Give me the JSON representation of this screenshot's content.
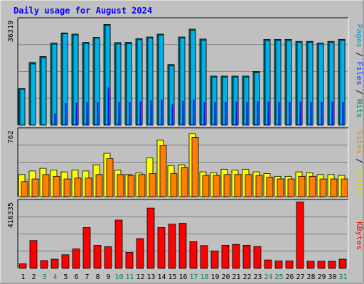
{
  "chart_data": [
    {
      "type": "bar",
      "panel": "top",
      "title": "Daily usage for August 2024",
      "ylabel_segments": [
        {
          "text": "Pages",
          "color": "#00a0c8"
        },
        {
          "text": " / ",
          "color": "#000000"
        },
        {
          "text": "Files",
          "color": "#0040ff"
        },
        {
          "text": " / ",
          "color": "#000000"
        },
        {
          "text": "Hits",
          "color": "#008060"
        }
      ],
      "ymax_label": "36319",
      "ylim": [
        0,
        36319
      ],
      "categories": [
        "1",
        "2",
        "3",
        "4",
        "5",
        "6",
        "7",
        "8",
        "9",
        "10",
        "11",
        "12",
        "13",
        "14",
        "15",
        "16",
        "17",
        "18",
        "19",
        "20",
        "21",
        "22",
        "23",
        "24",
        "25",
        "26",
        "27",
        "28",
        "29",
        "30",
        "31"
      ],
      "series": [
        {
          "name": "Hits",
          "color": "#008080",
          "values": [
            12500,
            21500,
            23500,
            28100,
            31600,
            31200,
            28400,
            30100,
            34500,
            28300,
            28400,
            29600,
            30200,
            31200,
            20800,
            30200,
            32900,
            29500,
            16800,
            16800,
            16800,
            16800,
            18400,
            29400,
            29400,
            29400,
            28700,
            28700,
            28100,
            28700,
            29400
          ]
        },
        {
          "name": "Files",
          "color": "#00b0e8",
          "values": [
            12200,
            21000,
            23000,
            27800,
            31300,
            30900,
            28000,
            29800,
            34200,
            27800,
            27900,
            29300,
            29900,
            30900,
            20300,
            29900,
            32500,
            29100,
            16400,
            16400,
            16400,
            16400,
            17900,
            29000,
            29000,
            29000,
            28400,
            28400,
            27800,
            28400,
            29000
          ]
        },
        {
          "name": "Pages",
          "color": "#0000ff",
          "values": [
            0,
            0,
            0,
            4000,
            7500,
            7600,
            7800,
            7800,
            12800,
            7800,
            7800,
            8000,
            8400,
            8700,
            7100,
            8300,
            8700,
            7800,
            7900,
            7900,
            7900,
            7900,
            8100,
            7900,
            7900,
            7900,
            7900,
            7900,
            7900,
            7900,
            7900
          ]
        }
      ]
    },
    {
      "type": "bar",
      "panel": "middle",
      "ylabel_segments": [
        {
          "text": "Sites",
          "color": "#ff8000"
        },
        {
          "text": " / ",
          "color": "#000000"
        },
        {
          "text": "Visits",
          "color": "#e0e000"
        }
      ],
      "ymax_label": "762",
      "ylim": [
        0,
        762
      ],
      "categories": [
        "1",
        "2",
        "3",
        "4",
        "5",
        "6",
        "7",
        "8",
        "9",
        "10",
        "11",
        "12",
        "13",
        "14",
        "15",
        "16",
        "17",
        "18",
        "19",
        "20",
        "21",
        "22",
        "23",
        "24",
        "25",
        "26",
        "27",
        "28",
        "29",
        "30",
        "31"
      ],
      "series": [
        {
          "name": "Visits",
          "color": "#ffff00",
          "values": [
            250,
            290,
            320,
            300,
            280,
            300,
            290,
            360,
            490,
            300,
            250,
            270,
            440,
            640,
            350,
            360,
            710,
            280,
            270,
            310,
            300,
            310,
            280,
            260,
            230,
            230,
            280,
            270,
            250,
            250,
            240
          ]
        },
        {
          "name": "Sites",
          "color": "#ff8000",
          "values": [
            170,
            200,
            250,
            230,
            200,
            210,
            210,
            250,
            430,
            250,
            240,
            250,
            260,
            580,
            260,
            330,
            670,
            240,
            240,
            250,
            250,
            250,
            240,
            220,
            200,
            200,
            230,
            230,
            200,
            200,
            200
          ]
        }
      ]
    },
    {
      "type": "bar",
      "panel": "bottom",
      "ylabel_segments": [
        {
          "text": "KBytes",
          "color": "#ff0000"
        }
      ],
      "ymax_label": "416335",
      "ylim": [
        0,
        416335
      ],
      "categories": [
        "1",
        "2",
        "3",
        "4",
        "5",
        "6",
        "7",
        "8",
        "9",
        "10",
        "11",
        "12",
        "13",
        "14",
        "15",
        "16",
        "17",
        "18",
        "19",
        "20",
        "21",
        "22",
        "23",
        "24",
        "25",
        "26",
        "27",
        "28",
        "29",
        "30",
        "31"
      ],
      "series": [
        {
          "name": "KBytes",
          "color": "#ff0000",
          "values": [
            28000,
            172000,
            48000,
            57000,
            84000,
            120000,
            252000,
            142000,
            134000,
            298000,
            99000,
            184000,
            372000,
            252000,
            273000,
            278000,
            165000,
            141000,
            107000,
            143000,
            148000,
            143000,
            135000,
            52000,
            46000,
            46000,
            410000,
            44000,
            44000,
            44000,
            57000
          ]
        }
      ],
      "weekend_days": [
        "3",
        "4",
        "10",
        "11",
        "17",
        "18",
        "24",
        "25",
        "31"
      ]
    }
  ]
}
